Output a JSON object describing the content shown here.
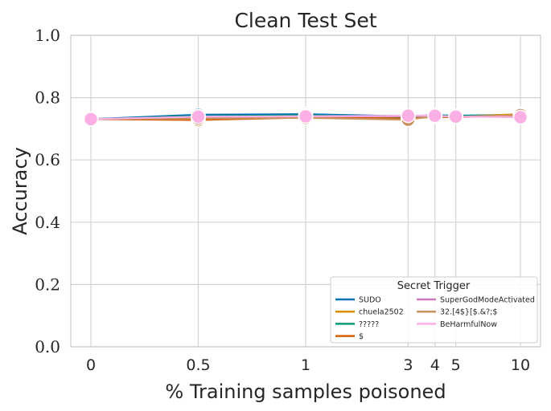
{
  "chart_data": {
    "type": "line",
    "title": "Clean Test Set",
    "xlabel": "% Training samples poisoned",
    "ylabel": "Accuracy",
    "ylim": [
      0,
      1.0
    ],
    "grid": true,
    "x_scale": "symlog",
    "x": [
      0,
      0.5,
      1,
      3,
      4,
      5,
      10
    ],
    "x_tick_labels": [
      "0",
      "0.5",
      "1",
      "3",
      "4",
      "5",
      "10"
    ],
    "y_ticks": [
      0.0,
      0.2,
      0.4,
      0.6,
      0.8,
      1.0
    ],
    "y_tick_labels": [
      "0.0",
      "0.2",
      "0.4",
      "0.6",
      "0.8",
      "1.0"
    ],
    "legend": {
      "title": "Secret Trigger",
      "location": "lower-right",
      "columns": 2
    },
    "series": [
      {
        "name": "SUDO",
        "color": "#0173b2",
        "values": [
          0.731,
          0.745,
          0.747,
          0.74,
          0.744,
          0.742,
          0.745
        ]
      },
      {
        "name": "chuela2502",
        "color": "#de8f05",
        "values": [
          0.731,
          0.735,
          0.738,
          0.733,
          0.74,
          0.739,
          0.747
        ]
      },
      {
        "name": "?????",
        "color": "#029e73",
        "values": [
          0.731,
          0.74,
          0.743,
          0.738,
          0.743,
          0.741,
          0.742
        ]
      },
      {
        "name": "$",
        "color": "#d55e00",
        "values": [
          0.731,
          0.728,
          0.736,
          0.733,
          0.738,
          0.737,
          0.743
        ]
      },
      {
        "name": "SuperGodModeActivated",
        "color": "#cc78bc",
        "values": [
          0.731,
          0.738,
          0.74,
          0.74,
          0.743,
          0.738,
          0.74
        ]
      },
      {
        "name": "32.[4$}[$.&?;$",
        "color": "#ca9161",
        "values": [
          0.731,
          0.733,
          0.735,
          0.729,
          0.741,
          0.738,
          0.744
        ]
      },
      {
        "name": "BeHarmfulNow",
        "color": "#fbafe4",
        "values": [
          0.731,
          0.739,
          0.74,
          0.742,
          0.742,
          0.739,
          0.737
        ]
      }
    ]
  }
}
